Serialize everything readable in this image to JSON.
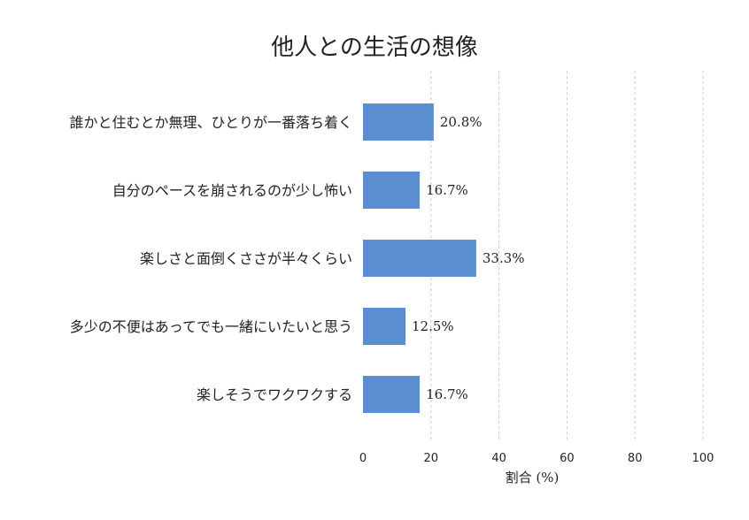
{
  "chart_data": {
    "type": "bar",
    "orientation": "horizontal",
    "title": "他人との生活の想像",
    "xlabel": "割合 (%)",
    "ylabel": "",
    "xlim": [
      0,
      100
    ],
    "xticks": [
      0,
      20,
      40,
      60,
      80,
      100
    ],
    "grid": "vertical-dashed",
    "categories": [
      "誰かと住むとか無理、ひとりが一番落ち着く",
      "自分のペースを崩されるのが少し怖い",
      "楽しさと面倒くささが半々くらい",
      "多少の不便はあってでも一緒にいたいと思う",
      "楽しそうでワクワクする"
    ],
    "values": [
      20.8,
      16.7,
      33.3,
      12.5,
      16.7
    ],
    "value_labels": [
      "20.8%",
      "16.7%",
      "33.3%",
      "12.5%",
      "16.7%"
    ],
    "bar_color": "#5b8ed1"
  }
}
